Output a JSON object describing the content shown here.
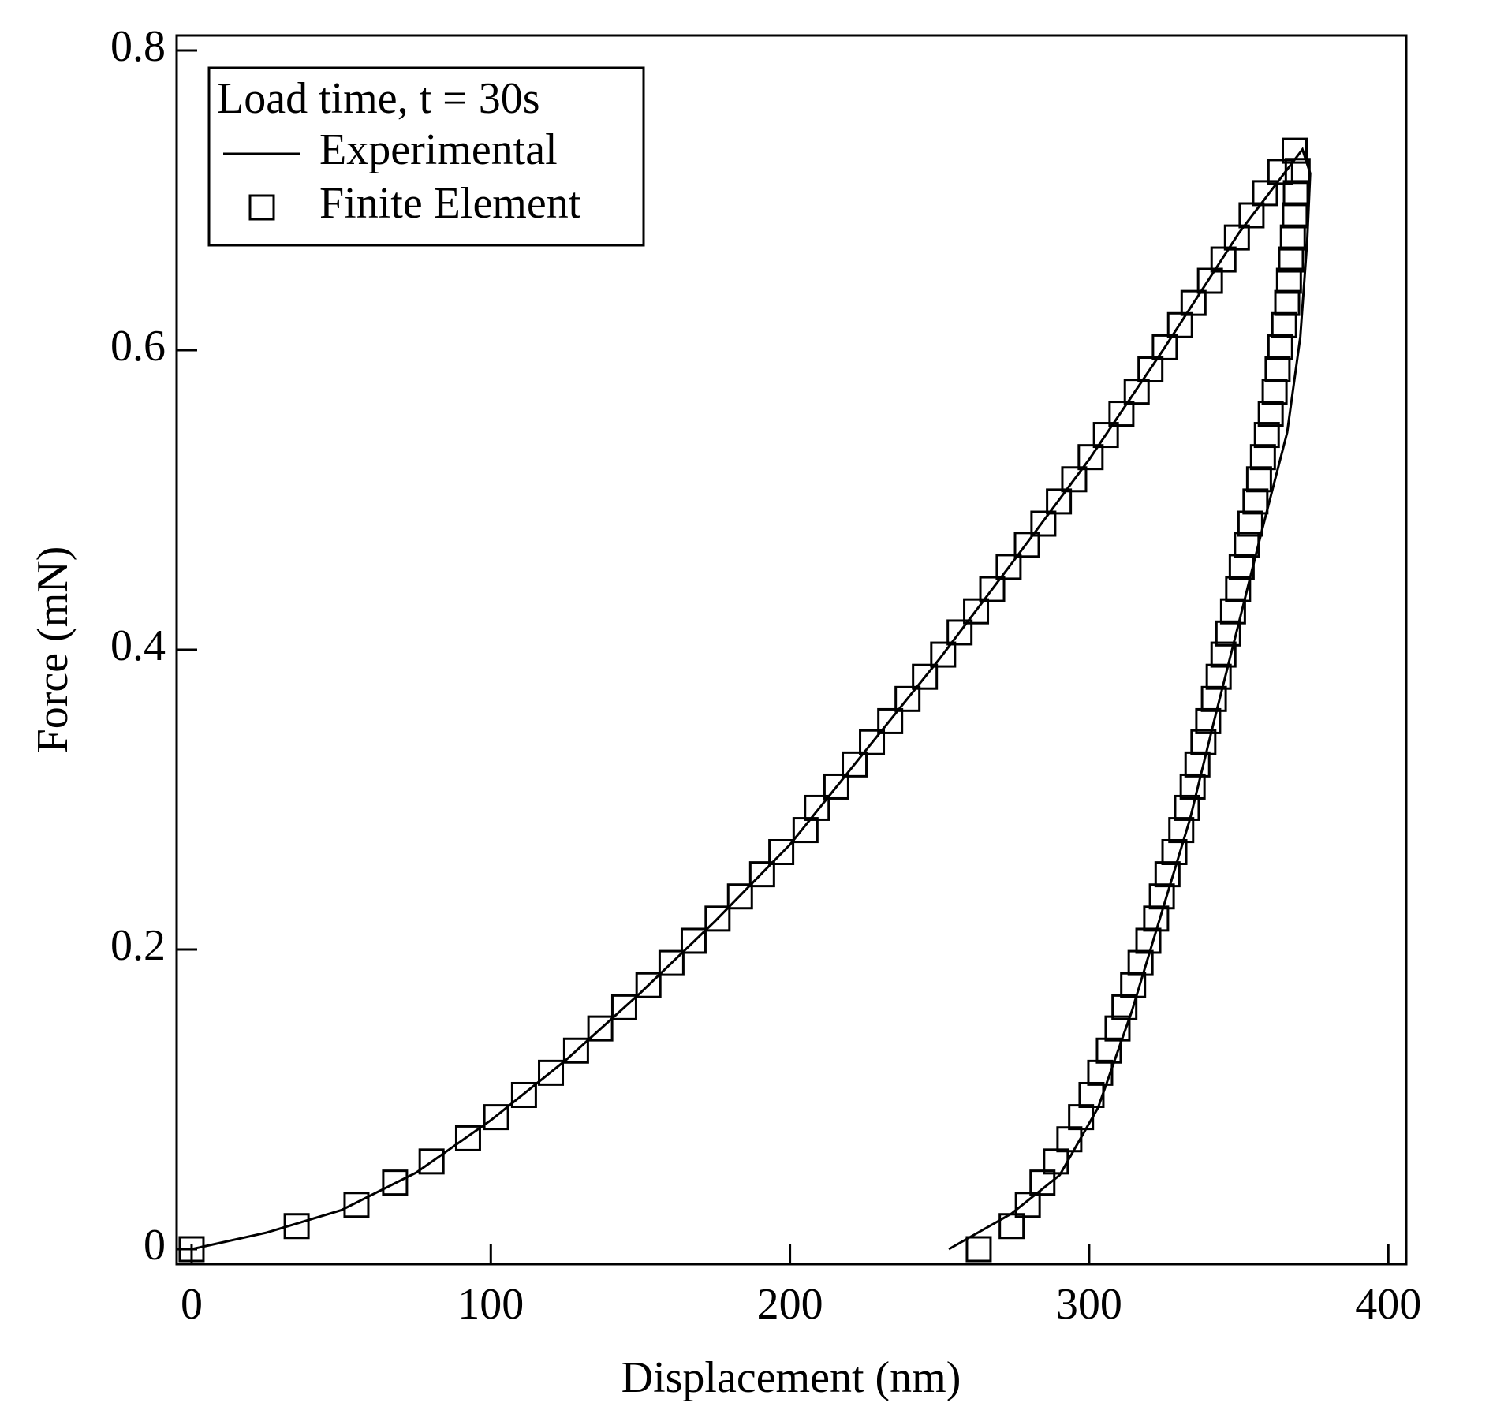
{
  "chart_data": {
    "type": "line",
    "x_label": "Displacement (nm)",
    "y_label": "Force (mN)",
    "legend_title": "Load time, t = 30s",
    "legend": "upper left",
    "grid": false,
    "xlim": [
      -5,
      406
    ],
    "ylim": [
      -0.01,
      0.81
    ],
    "xticks": [
      0,
      100,
      200,
      300,
      400
    ],
    "yticks": [
      0,
      0.2,
      0.4,
      0.6,
      0.8
    ],
    "series": [
      {
        "name": "Experimental",
        "type": "line",
        "color": "#000000",
        "x": [
          0,
          25,
          50,
          75,
          100,
          125,
          150,
          175,
          200,
          225,
          250,
          275,
          300,
          325,
          350,
          371.3,
          373.9,
          372.9,
          370.6,
          366.2,
          357.8,
          349.8,
          341.7,
          333.7,
          324,
          314.3,
          303,
          290.2,
          274.1,
          253.1
        ],
        "y": [
          0,
          0.011,
          0.026,
          0.051,
          0.086,
          0.126,
          0.171,
          0.219,
          0.27,
          0.332,
          0.394,
          0.46,
          0.527,
          0.601,
          0.678,
          0.734,
          0.718,
          0.673,
          0.609,
          0.545,
          0.48,
          0.416,
          0.352,
          0.287,
          0.223,
          0.159,
          0.0945,
          0.0495,
          0.0238,
          0
        ]
      },
      {
        "name": "Finite Element",
        "type": "scatter",
        "color": "#000000",
        "x": [
          0,
          35.1,
          55.1,
          68.0,
          80.2,
          92.4,
          101.8,
          111.1,
          120.1,
          128.5,
          136.6,
          144.6,
          152.7,
          160.4,
          167.8,
          175.8,
          183.3,
          190.7,
          197.1,
          205.2,
          209.0,
          215.5,
          221.6,
          227.4,
          233.5,
          239.3,
          245.1,
          251.2,
          256.7,
          262.2,
          267.6,
          273.1,
          279.2,
          284.7,
          289.9,
          295.0,
          300.5,
          305.6,
          310.8,
          315.9,
          320.5,
          325.3,
          330.4,
          334.9,
          340.4,
          344.9,
          349.4,
          354.3,
          358.8,
          363.9,
          368.7,
          369.7,
          369.1,
          368.8,
          368.1,
          367.5,
          366.8,
          366.2,
          365.2,
          363.9,
          363.0,
          362.0,
          360.7,
          359.4,
          358.1,
          356.8,
          355.6,
          353.9,
          352.7,
          351.0,
          349.8,
          348.1,
          346.5,
          344.9,
          343.3,
          341.7,
          339.8,
          338.2,
          336.2,
          334.6,
          332.7,
          330.8,
          328.5,
          326.2,
          324.3,
          322.4,
          319.8,
          317.2,
          314.7,
          311.8,
          309.5,
          306.6,
          303.7,
          300.8,
          297.3,
          293.4,
          288.9,
          284.4,
          279.5,
          274.1,
          263.1
        ],
        "y": [
          0,
          0.0154,
          0.0296,
          0.0444,
          0.0585,
          0.074,
          0.0881,
          0.1029,
          0.1177,
          0.1325,
          0.1473,
          0.1614,
          0.1762,
          0.191,
          0.2058,
          0.2206,
          0.2354,
          0.2502,
          0.265,
          0.2797,
          0.2945,
          0.3087,
          0.3235,
          0.3383,
          0.3524,
          0.3672,
          0.382,
          0.3968,
          0.4116,
          0.4257,
          0.4405,
          0.4553,
          0.4701,
          0.4842,
          0.499,
          0.5138,
          0.5286,
          0.5434,
          0.5576,
          0.5723,
          0.5871,
          0.6019,
          0.6167,
          0.6315,
          0.6463,
          0.6605,
          0.6752,
          0.69,
          0.7048,
          0.719,
          0.7331,
          0.7196,
          0.7048,
          0.69,
          0.6752,
          0.6605,
          0.6463,
          0.6315,
          0.6167,
          0.6019,
          0.5871,
          0.5723,
          0.5576,
          0.5434,
          0.5286,
          0.5138,
          0.499,
          0.4842,
          0.4701,
          0.4553,
          0.4405,
          0.4257,
          0.4109,
          0.3968,
          0.382,
          0.3672,
          0.3524,
          0.3383,
          0.3235,
          0.3087,
          0.2945,
          0.2797,
          0.265,
          0.2502,
          0.2354,
          0.2206,
          0.2058,
          0.191,
          0.1762,
          0.1614,
          0.1473,
          0.1325,
          0.1177,
          0.1029,
          0.0881,
          0.0733,
          0.0585,
          0.0444,
          0.0296,
          0.0154,
          0
        ]
      }
    ]
  }
}
